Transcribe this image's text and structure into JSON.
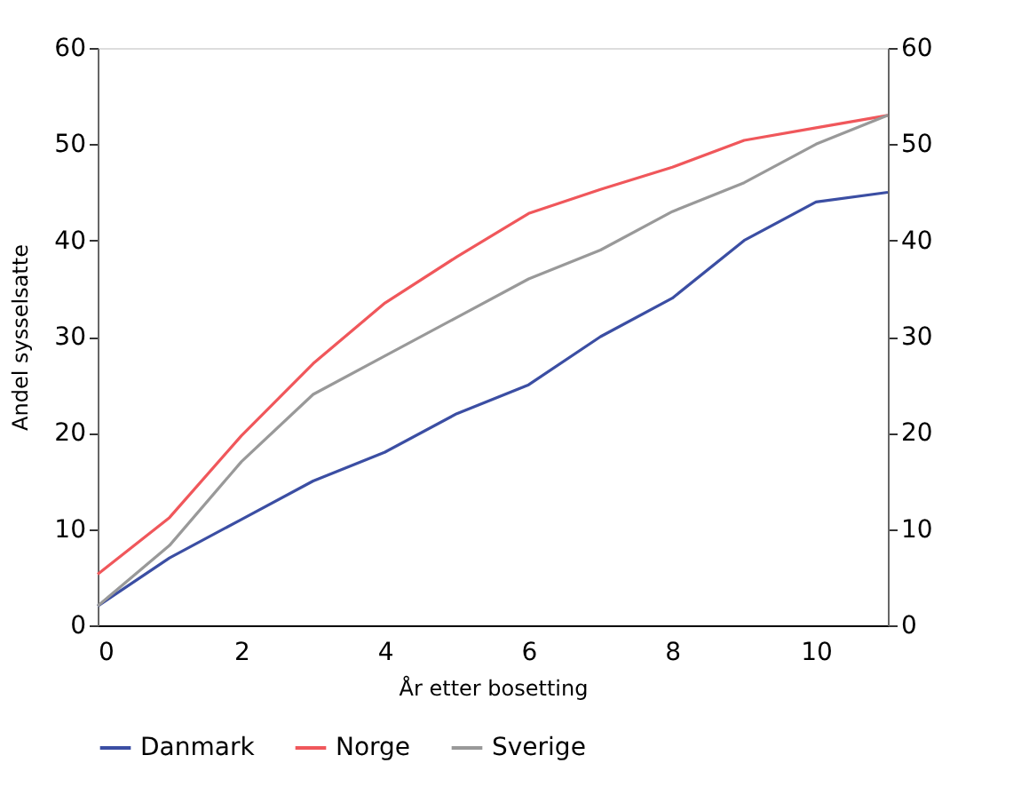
{
  "chart_data": {
    "type": "line",
    "xlabel": "År etter bosetting",
    "ylabel": "Andel sysselsatte",
    "x": [
      0,
      1,
      2,
      3,
      4,
      5,
      6,
      7,
      8,
      9,
      10,
      11
    ],
    "series": [
      {
        "name": "Danmark",
        "color": "#3b4ea3",
        "values": [
          2,
          7,
          11,
          15,
          18,
          22,
          25,
          30,
          34,
          40,
          44,
          45
        ]
      },
      {
        "name": "Norge",
        "color": "#f0575b",
        "values": [
          5.3,
          11.2,
          19.7,
          27.2,
          33.5,
          38.3,
          42.8,
          45.3,
          47.6,
          50.4,
          51.7,
          53
        ]
      },
      {
        "name": "Sverige",
        "color": "#999999",
        "values": [
          2,
          8.3,
          17,
          24,
          28,
          32,
          36,
          39,
          43,
          46,
          50,
          53
        ]
      }
    ],
    "xlim": [
      0,
      11
    ],
    "xticks": [
      0,
      2,
      4,
      6,
      8,
      10
    ],
    "ylim": [
      0,
      60
    ],
    "yticks": [
      0,
      10,
      20,
      30,
      40,
      50,
      60
    ],
    "y2lim": [
      0,
      60
    ],
    "y2ticks": [
      0,
      10,
      20,
      30,
      40,
      50,
      60
    ],
    "legend": "bottom",
    "grid": false,
    "marker": "none",
    "line_style": "solid"
  }
}
